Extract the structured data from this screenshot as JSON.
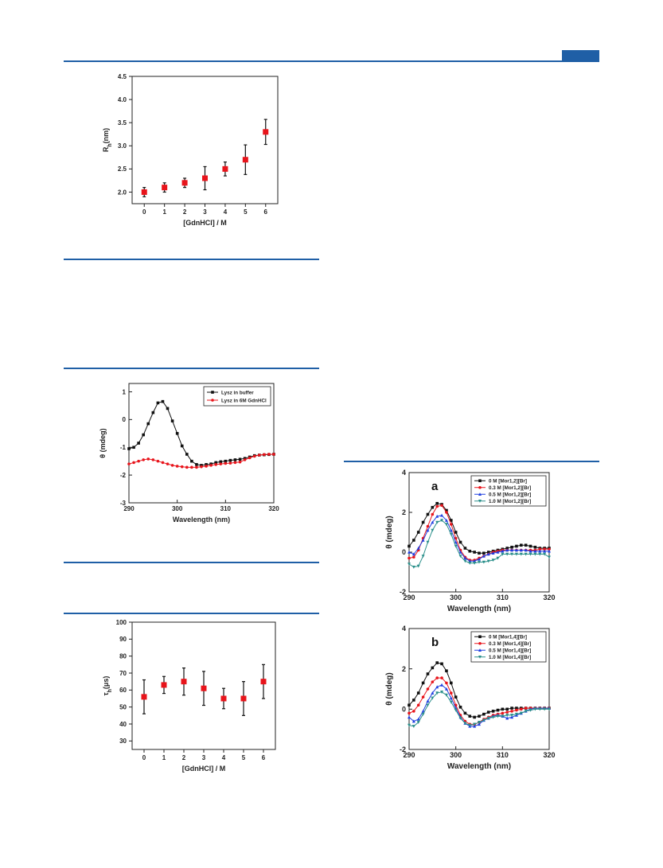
{
  "colors": {
    "accent": "#1f5fa6",
    "red": "#e8141b",
    "black": "#111111",
    "blue": "#1f3fe0",
    "teal": "#2a8f8a"
  },
  "chart_data": [
    {
      "type": "scatter",
      "xlabel": "[GdnHCl] / M",
      "ylabel": "R_h(nm)",
      "ylabel_main": "R",
      "ylabel_sub": "h",
      "ylabel_rest": "(nm)",
      "xlim": [
        -0.6,
        6.6
      ],
      "ylim": [
        1.75,
        4.5
      ],
      "xticks": [
        0,
        1,
        2,
        3,
        4,
        5,
        6
      ],
      "yticks": [
        2.0,
        2.5,
        3.0,
        3.5,
        4.0,
        4.5
      ],
      "ytick_labels": [
        "2.0",
        "2.5",
        "3.0",
        "3.5",
        "4.0",
        "4.5"
      ],
      "series": [
        {
          "x": [
            0,
            1,
            2,
            3,
            4,
            5,
            6
          ],
          "y": [
            2.0,
            2.1,
            2.2,
            2.3,
            2.5,
            2.7,
            3.3
          ],
          "err": [
            0.1,
            0.1,
            0.1,
            0.25,
            0.15,
            0.32,
            0.27
          ],
          "color": "#e8141b"
        }
      ]
    },
    {
      "type": "line",
      "xlabel": "Wavelength (nm)",
      "ylabel": "θ (mdeg)",
      "xlim": [
        290,
        320
      ],
      "ylim": [
        -3,
        1.3
      ],
      "xticks": [
        290,
        300,
        310,
        320
      ],
      "yticks": [
        -3,
        -2,
        -1,
        0,
        1
      ],
      "ytick_labels": [
        "-3",
        "-2",
        "-1",
        "0",
        "1"
      ],
      "legend": "top-right",
      "series": [
        {
          "name": "Lysz in buffer",
          "color": "#111111",
          "marker": "square",
          "x": [
            290,
            291,
            292,
            293,
            294,
            295,
            296,
            297,
            298,
            299,
            300,
            301,
            302,
            303,
            304,
            305,
            306,
            307,
            308,
            309,
            310,
            311,
            312,
            313,
            314,
            315,
            316,
            317,
            318,
            319,
            320
          ],
          "y": [
            -1.05,
            -1.0,
            -0.85,
            -0.55,
            -0.15,
            0.25,
            0.6,
            0.65,
            0.4,
            -0.05,
            -0.5,
            -0.95,
            -1.25,
            -1.5,
            -1.62,
            -1.65,
            -1.62,
            -1.6,
            -1.55,
            -1.52,
            -1.5,
            -1.47,
            -1.45,
            -1.43,
            -1.4,
            -1.35,
            -1.3,
            -1.28,
            -1.27,
            -1.26,
            -1.25
          ]
        },
        {
          "name": "Lysz in 6M GdnHCl",
          "color": "#e8141b",
          "marker": "circle",
          "x": [
            290,
            291,
            292,
            293,
            294,
            295,
            296,
            297,
            298,
            299,
            300,
            301,
            302,
            303,
            304,
            305,
            306,
            307,
            308,
            309,
            310,
            311,
            312,
            313,
            314,
            315,
            316,
            317,
            318,
            319,
            320
          ],
          "y": [
            -1.6,
            -1.55,
            -1.5,
            -1.45,
            -1.42,
            -1.45,
            -1.5,
            -1.55,
            -1.6,
            -1.65,
            -1.68,
            -1.7,
            -1.72,
            -1.72,
            -1.72,
            -1.7,
            -1.68,
            -1.65,
            -1.62,
            -1.6,
            -1.58,
            -1.57,
            -1.55,
            -1.53,
            -1.45,
            -1.38,
            -1.32,
            -1.28,
            -1.26,
            -1.25,
            -1.25
          ]
        }
      ]
    },
    {
      "type": "scatter",
      "xlabel": "[GdnHCl] / M",
      "ylabel": "τ_h(μs)",
      "ylabel_main": "τ",
      "ylabel_sub": "h",
      "ylabel_rest": "(μs)",
      "xlim": [
        -0.6,
        6.6
      ],
      "ylim": [
        25,
        100
      ],
      "xticks": [
        0,
        1,
        2,
        3,
        4,
        5,
        6
      ],
      "yticks": [
        30,
        40,
        50,
        60,
        70,
        80,
        90,
        100
      ],
      "ytick_labels": [
        "30",
        "40",
        "50",
        "60",
        "70",
        "80",
        "90",
        "100"
      ],
      "series": [
        {
          "x": [
            0,
            1,
            2,
            3,
            4,
            5,
            6
          ],
          "y": [
            56,
            63,
            65,
            61,
            55,
            55,
            65
          ],
          "err": [
            10,
            5,
            8,
            10,
            6,
            10,
            10
          ],
          "color": "#e8141b"
        }
      ]
    },
    {
      "type": "line",
      "panel_label": "a",
      "xlabel": "Wavelength (nm)",
      "ylabel": "θ (mdeg)",
      "xlim": [
        290,
        320
      ],
      "ylim": [
        -2,
        4
      ],
      "xticks": [
        290,
        300,
        310,
        320
      ],
      "yticks": [
        -2,
        0,
        2,
        4
      ],
      "ytick_labels": [
        "-2",
        "0",
        "2",
        "4"
      ],
      "legend": "top-right",
      "series": [
        {
          "name": "0    M [Mor1,2][Br]",
          "color": "#111111",
          "marker": "square",
          "x": [
            290,
            291,
            292,
            293,
            294,
            295,
            296,
            297,
            298,
            299,
            300,
            301,
            302,
            303,
            304,
            305,
            306,
            307,
            308,
            309,
            310,
            311,
            312,
            313,
            314,
            315,
            316,
            317,
            318,
            319,
            320
          ],
          "y": [
            0.3,
            0.6,
            1.0,
            1.5,
            1.9,
            2.25,
            2.45,
            2.4,
            2.1,
            1.6,
            1.0,
            0.5,
            0.2,
            0.05,
            0.0,
            -0.05,
            -0.05,
            0.0,
            0.05,
            0.1,
            0.15,
            0.2,
            0.25,
            0.3,
            0.35,
            0.35,
            0.3,
            0.25,
            0.2,
            0.2,
            0.2
          ]
        },
        {
          "name": "0.3 M [Mor1,2][Br]",
          "color": "#e8141b",
          "marker": "circle",
          "x": [
            290,
            291,
            292,
            293,
            294,
            295,
            296,
            297,
            298,
            299,
            300,
            301,
            302,
            303,
            304,
            305,
            306,
            307,
            308,
            309,
            310,
            311,
            312,
            313,
            314,
            315,
            316,
            317,
            318,
            319,
            320
          ],
          "y": [
            -0.3,
            -0.25,
            0.1,
            0.7,
            1.3,
            1.9,
            2.3,
            2.35,
            2.0,
            1.4,
            0.7,
            0.1,
            -0.25,
            -0.4,
            -0.4,
            -0.3,
            -0.2,
            -0.1,
            0.0,
            0.05,
            0.1,
            0.1,
            0.1,
            0.1,
            0.1,
            0.1,
            0.1,
            0.1,
            0.15,
            0.15,
            0.15
          ]
        },
        {
          "name": "0.5 M [Mor1,2][Br]",
          "color": "#1f3fe0",
          "marker": "triangle-up",
          "x": [
            290,
            291,
            292,
            293,
            294,
            295,
            296,
            297,
            298,
            299,
            300,
            301,
            302,
            303,
            304,
            305,
            306,
            307,
            308,
            309,
            310,
            311,
            312,
            313,
            314,
            315,
            316,
            317,
            318,
            319,
            320
          ],
          "y": [
            0.0,
            -0.1,
            0.2,
            0.6,
            1.1,
            1.5,
            1.8,
            1.85,
            1.6,
            1.1,
            0.5,
            0.0,
            -0.3,
            -0.45,
            -0.45,
            -0.35,
            -0.2,
            -0.1,
            -0.05,
            0.0,
            0.05,
            0.1,
            0.1,
            0.1,
            0.1,
            0.1,
            0.05,
            0.05,
            0.05,
            0.05,
            0.05
          ]
        },
        {
          "name": "1.0 M [Mor1,2][Br]",
          "color": "#2a8f8a",
          "marker": "triangle-down",
          "x": [
            290,
            291,
            292,
            293,
            294,
            295,
            296,
            297,
            298,
            299,
            300,
            301,
            302,
            303,
            304,
            305,
            306,
            307,
            308,
            309,
            310,
            311,
            312,
            313,
            314,
            315,
            316,
            317,
            318,
            319,
            320
          ],
          "y": [
            -0.6,
            -0.75,
            -0.7,
            -0.2,
            0.5,
            1.1,
            1.5,
            1.6,
            1.4,
            0.9,
            0.3,
            -0.2,
            -0.45,
            -0.55,
            -0.55,
            -0.5,
            -0.5,
            -0.45,
            -0.4,
            -0.3,
            -0.1,
            -0.1,
            -0.1,
            -0.1,
            -0.1,
            -0.1,
            -0.1,
            -0.1,
            -0.1,
            -0.1,
            -0.25
          ]
        }
      ]
    },
    {
      "type": "line",
      "panel_label": "b",
      "xlabel": "Wavelength (nm)",
      "ylabel": "θ (mdeg)",
      "xlim": [
        290,
        320
      ],
      "ylim": [
        -2,
        4
      ],
      "xticks": [
        290,
        300,
        310,
        320
      ],
      "yticks": [
        -2,
        0,
        2,
        4
      ],
      "ytick_labels": [
        "-2",
        "0",
        "2",
        "4"
      ],
      "legend": "top-right",
      "series": [
        {
          "name": "0    M [Mor1,4][Br]",
          "color": "#111111",
          "marker": "square",
          "x": [
            290,
            291,
            292,
            293,
            294,
            295,
            296,
            297,
            298,
            299,
            300,
            301,
            302,
            303,
            304,
            305,
            306,
            307,
            308,
            309,
            310,
            311,
            312,
            313,
            314,
            315,
            316,
            317,
            318,
            319,
            320
          ],
          "y": [
            0.2,
            0.45,
            0.8,
            1.3,
            1.75,
            2.05,
            2.3,
            2.25,
            1.9,
            1.3,
            0.6,
            0.1,
            -0.2,
            -0.35,
            -0.4,
            -0.35,
            -0.25,
            -0.15,
            -0.1,
            -0.05,
            0.0,
            0.0,
            0.05,
            0.05,
            0.05,
            0.05,
            0.05,
            0.05,
            0.05,
            0.05,
            0.05
          ]
        },
        {
          "name": "0.3 M [Mor1,4][Br]",
          "color": "#e8141b",
          "marker": "circle",
          "x": [
            290,
            291,
            292,
            293,
            294,
            295,
            296,
            297,
            298,
            299,
            300,
            301,
            302,
            303,
            304,
            305,
            306,
            307,
            308,
            309,
            310,
            311,
            312,
            313,
            314,
            315,
            316,
            317,
            318,
            319,
            320
          ],
          "y": [
            -0.2,
            -0.1,
            0.2,
            0.6,
            1.0,
            1.35,
            1.55,
            1.55,
            1.3,
            0.8,
            0.2,
            -0.3,
            -0.6,
            -0.75,
            -0.75,
            -0.65,
            -0.5,
            -0.4,
            -0.3,
            -0.25,
            -0.2,
            -0.15,
            -0.1,
            -0.05,
            0.0,
            0.05,
            0.05,
            0.05,
            0.05,
            0.05,
            0.05
          ]
        },
        {
          "name": "0.5 M [Mor1,4][Br]",
          "color": "#1f3fe0",
          "marker": "triangle-up",
          "x": [
            290,
            291,
            292,
            293,
            294,
            295,
            296,
            297,
            298,
            299,
            300,
            301,
            302,
            303,
            304,
            305,
            306,
            307,
            308,
            309,
            310,
            311,
            312,
            313,
            314,
            315,
            316,
            317,
            318,
            319,
            320
          ],
          "y": [
            -0.4,
            -0.6,
            -0.5,
            -0.1,
            0.4,
            0.8,
            1.1,
            1.2,
            1.0,
            0.55,
            0.05,
            -0.4,
            -0.7,
            -0.85,
            -0.85,
            -0.75,
            -0.55,
            -0.45,
            -0.35,
            -0.3,
            -0.35,
            -0.45,
            -0.4,
            -0.3,
            -0.2,
            -0.1,
            0.0,
            0.05,
            0.05,
            0.05,
            0.05
          ]
        },
        {
          "name": "1.0 M [Mor1,4][Br]",
          "color": "#2a8f8a",
          "marker": "triangle-down",
          "x": [
            290,
            291,
            292,
            293,
            294,
            295,
            296,
            297,
            298,
            299,
            300,
            301,
            302,
            303,
            304,
            305,
            306,
            307,
            308,
            309,
            310,
            311,
            312,
            313,
            314,
            315,
            316,
            317,
            318,
            319,
            320
          ],
          "y": [
            -0.8,
            -0.85,
            -0.65,
            -0.25,
            0.2,
            0.55,
            0.8,
            0.85,
            0.7,
            0.35,
            -0.05,
            -0.45,
            -0.7,
            -0.8,
            -0.75,
            -0.65,
            -0.55,
            -0.45,
            -0.4,
            -0.35,
            -0.35,
            -0.3,
            -0.3,
            -0.25,
            -0.2,
            -0.1,
            -0.05,
            0.0,
            0.0,
            0.0,
            0.0
          ]
        }
      ]
    }
  ]
}
